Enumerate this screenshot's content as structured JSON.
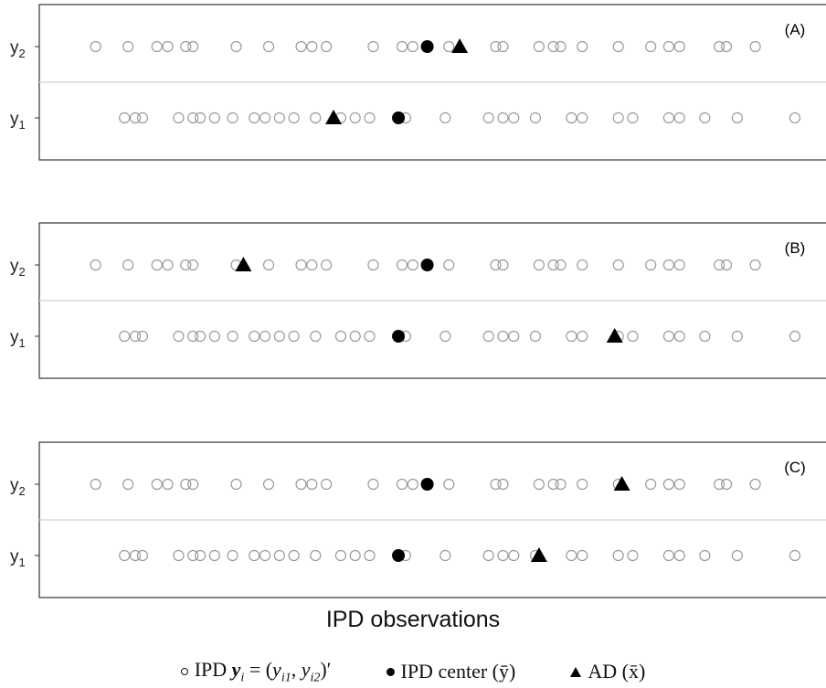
{
  "chart_data": {
    "type": "scatter",
    "xlabel": "IPD observations",
    "rows": [
      {
        "id": "y2",
        "label_base": "y",
        "label_sub": "2"
      },
      {
        "id": "y1",
        "label_base": "y",
        "label_sub": "1"
      }
    ],
    "x_range": [
      0,
      100
    ],
    "ipd": {
      "y2": [
        3,
        7.5,
        11.5,
        13,
        15.5,
        16.5,
        22.5,
        27,
        31.5,
        33,
        35,
        41.5,
        45.5,
        47,
        49,
        52,
        58.5,
        59.5,
        64.5,
        66.5,
        67.5,
        70.5,
        75.5,
        80,
        82.5,
        84,
        89.5,
        90.5,
        94.5
      ],
      "y1": [
        7,
        8.5,
        9.5,
        14.5,
        16.5,
        17.5,
        19.5,
        22,
        25,
        26.5,
        28.5,
        30.5,
        33.5,
        37,
        39,
        41,
        46,
        51.5,
        57.5,
        59.5,
        61,
        64,
        69,
        70.5,
        75.5,
        77.5,
        82.5,
        84,
        87.5,
        92,
        100
      ]
    },
    "ipd_center": {
      "y2": 49,
      "y1": 45
    },
    "panels": [
      {
        "tag": "(A)",
        "ad": {
          "y2": 53.5,
          "y1": 36
        }
      },
      {
        "tag": "(B)",
        "ad": {
          "y2": 23.5,
          "y1": 75
        }
      },
      {
        "tag": "(C)",
        "ad": {
          "y2": 76,
          "y1": 64.5
        }
      }
    ],
    "legend": [
      {
        "symbol": "open-circle",
        "text_pre": "IPD ",
        "text_bold": "y",
        "text_post": "i = (y",
        "sub1": "i1",
        "mid": ", y",
        "sub2": "i2",
        "end": ")′"
      },
      {
        "symbol": "filled-circle",
        "text": "IPD center (ȳ)"
      },
      {
        "symbol": "triangle",
        "text": "AD (x̄)"
      }
    ]
  }
}
